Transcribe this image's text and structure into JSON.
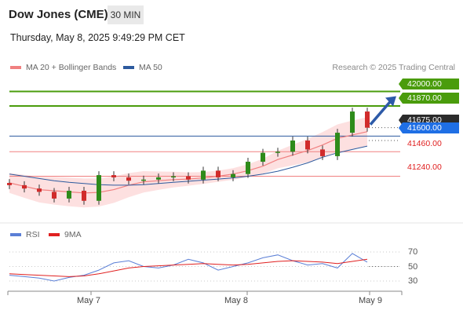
{
  "header": {
    "title": "Dow Jones (CME)",
    "timeframe": "30 MIN",
    "datetime": "Thursday, May 8, 2025 9:49:29 PM CET"
  },
  "legend": {
    "bollinger_label": "MA 20 + Bollinger Bands",
    "ma50_label": "MA 50",
    "credit": "Research © 2025 Trading Central",
    "colors": {
      "bollinger": "#f08080",
      "ma50": "#2d5a9e"
    }
  },
  "rsi_legend": {
    "rsi_label": "RSI",
    "ma9_label": "9MA",
    "colors": {
      "rsi": "#5b7fd6",
      "ma9": "#e02020"
    }
  },
  "price_levels": [
    {
      "value": 42000,
      "label": "42000.00",
      "kind": "resistance",
      "color": "#4a9c0c"
    },
    {
      "value": 41870,
      "label": "41870.00",
      "kind": "resistance",
      "color": "#4a9c0c"
    },
    {
      "value": 41675,
      "label": "41675.00",
      "kind": "last",
      "color": "#2b2b2b"
    },
    {
      "value": 41600,
      "label": "41600.00",
      "kind": "pivot",
      "color": "#1f6fe5"
    },
    {
      "value": 41460,
      "label": "41460.00",
      "kind": "support",
      "color": "#e02020"
    },
    {
      "value": 41240,
      "label": "41240.00",
      "kind": "support",
      "color": "#e02020"
    }
  ],
  "rsi_axis": {
    "ticks": [
      "70",
      "50",
      "30"
    ]
  },
  "x_axis": {
    "labels": [
      "May 7",
      "May 8",
      "May 9"
    ]
  },
  "chart_data": [
    {
      "type": "candlestick",
      "title": "Dow Jones (CME)",
      "interval": "30 MIN",
      "y_range": [
        40920,
        42130
      ],
      "x_labels": [
        "May 7",
        "May 8",
        "May 9"
      ],
      "series": [
        {
          "name": "MA 20 + Bollinger Bands",
          "values": [
            41180,
            41150,
            41120,
            41110,
            41100,
            41090,
            41095,
            41120,
            41160,
            41190,
            41200,
            41210,
            41215,
            41225,
            41240,
            41260,
            41290,
            41330,
            41390,
            41430,
            41470,
            41520,
            41580,
            41610,
            41640
          ]
        },
        {
          "name": "MA 50",
          "values": [
            41260,
            41240,
            41220,
            41200,
            41185,
            41175,
            41165,
            41160,
            41160,
            41165,
            41175,
            41185,
            41195,
            41205,
            41215,
            41225,
            41240,
            41260,
            41285,
            41320,
            41360,
            41410,
            41450,
            41480,
            41510
          ]
        },
        {
          "name": "Price",
          "values": [
            41160,
            41130,
            41100,
            41040,
            41110,
            41020,
            41250,
            41230,
            41200,
            41210,
            41230,
            41240,
            41210,
            41290,
            41230,
            41260,
            41370,
            41450,
            41460,
            41560,
            41480,
            41420,
            41630,
            41820,
            41675
          ]
        }
      ],
      "levels": [
        42000,
        41870,
        41675,
        41600,
        41460,
        41240
      ],
      "projection": {
        "from": 41675,
        "to": 42000
      }
    },
    {
      "type": "line",
      "title": "RSI",
      "y_ticks": [
        70,
        50,
        30
      ],
      "series": [
        {
          "name": "RSI",
          "values": [
            38,
            36,
            34,
            30,
            35,
            38,
            45,
            55,
            58,
            50,
            48,
            52,
            60,
            55,
            45,
            50,
            55,
            62,
            66,
            58,
            52,
            54,
            48,
            68,
            56
          ]
        },
        {
          "name": "9MA",
          "values": [
            40,
            39,
            38,
            37,
            36,
            37,
            40,
            44,
            48,
            50,
            51,
            52,
            53,
            54,
            53,
            52,
            53,
            55,
            57,
            58,
            57,
            56,
            54,
            57,
            60
          ]
        }
      ]
    }
  ]
}
